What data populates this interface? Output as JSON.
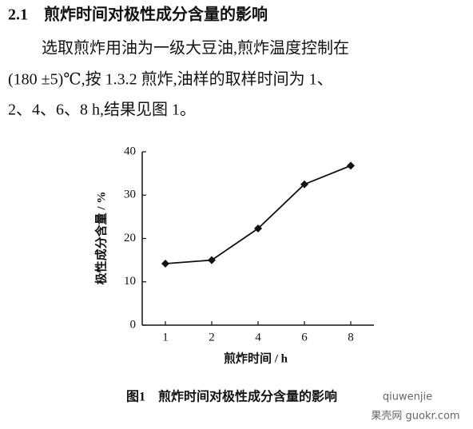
{
  "heading": "2.1　煎炸时间对极性成分含量的影响",
  "paragraph": [
    "选取煎炸用油为一级大豆油,煎炸温度控制在",
    "(180 ±5)℃,按 1.3.2 煎炸,油样的取样时间为 1、",
    "2、4、6、8 h,结果见图 1。"
  ],
  "chart_data": {
    "type": "line",
    "x_label": "煎炸时间 / h",
    "y_label": "极性成分含量 / %",
    "categories": [
      "1",
      "2",
      "4",
      "6",
      "8"
    ],
    "series": [
      {
        "name": "极性成分含量",
        "color": "#111111",
        "values": [
          14.2,
          15,
          22.3,
          32.5,
          36.8
        ]
      }
    ],
    "ylim": [
      0,
      40
    ],
    "yticks": [
      0,
      10,
      20,
      30,
      40
    ],
    "grid": false,
    "legend": false
  },
  "caption": "图1　煎炸时间对极性成分含量的影响",
  "watermark": [
    "qiuwenjie",
    "果壳网 guokr.com"
  ]
}
